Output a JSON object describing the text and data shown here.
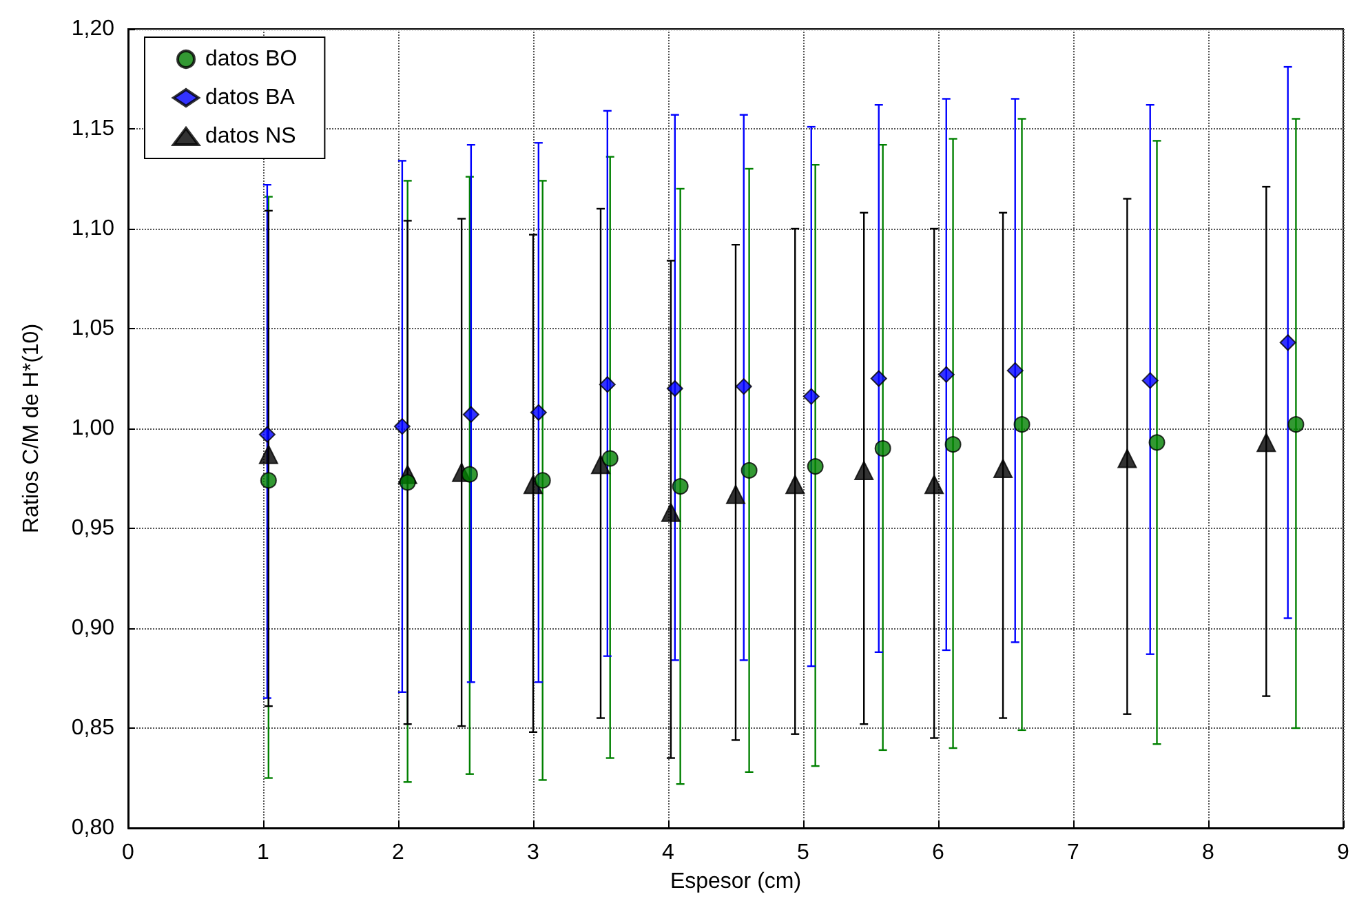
{
  "chart_data": {
    "type": "scatter",
    "xlabel": "Espesor (cm)",
    "ylabel": "Ratios C/M de H*(10)",
    "xlim": [
      0,
      9
    ],
    "xticks": [
      0,
      1,
      2,
      3,
      4,
      5,
      6,
      7,
      8,
      9
    ],
    "ylim": [
      0.8,
      1.2
    ],
    "yticks": [
      {
        "value": 0.8,
        "label": "0,80"
      },
      {
        "value": 0.85,
        "label": "0,85"
      },
      {
        "value": 0.9,
        "label": "0,90"
      },
      {
        "value": 0.95,
        "label": "0,95"
      },
      {
        "value": 1.0,
        "label": "1,00"
      },
      {
        "value": 1.05,
        "label": "1,05"
      },
      {
        "value": 1.1,
        "label": "1,10"
      },
      {
        "value": 1.15,
        "label": "1,15"
      },
      {
        "value": 1.2,
        "label": "1,20"
      }
    ],
    "grid": true,
    "legend": "top left",
    "series": [
      {
        "name": "datos BO",
        "color": "#008000",
        "marker": "circle",
        "x": [
          1.04,
          2.07,
          2.53,
          3.07,
          3.57,
          4.09,
          4.6,
          5.09,
          5.59,
          6.11,
          6.62,
          7.62,
          8.65
        ],
        "values": [
          0.974,
          0.973,
          0.977,
          0.974,
          0.985,
          0.971,
          0.979,
          0.981,
          0.99,
          0.992,
          1.002,
          0.993,
          1.002
        ],
        "errors": [
          [
            0.825,
            1.116
          ],
          [
            0.823,
            1.124
          ],
          [
            0.827,
            1.126
          ],
          [
            0.824,
            1.124
          ],
          [
            0.835,
            1.136
          ],
          [
            0.822,
            1.12
          ],
          [
            0.828,
            1.13
          ],
          [
            0.831,
            1.132
          ],
          [
            0.839,
            1.142
          ],
          [
            0.84,
            1.145
          ],
          [
            0.849,
            1.155
          ],
          [
            0.842,
            1.144
          ],
          [
            0.85,
            1.155
          ]
        ]
      },
      {
        "name": "datos BA",
        "color": "#0000ff",
        "marker": "diamond",
        "x": [
          1.03,
          2.03,
          2.54,
          3.04,
          3.55,
          4.05,
          4.56,
          5.06,
          5.56,
          6.06,
          6.57,
          7.57,
          8.59
        ],
        "values": [
          0.997,
          1.001,
          1.007,
          1.008,
          1.022,
          1.02,
          1.021,
          1.016,
          1.025,
          1.027,
          1.029,
          1.024,
          1.043
        ],
        "errors": [
          [
            0.865,
            1.122
          ],
          [
            0.868,
            1.134
          ],
          [
            0.873,
            1.142
          ],
          [
            0.873,
            1.143
          ],
          [
            0.886,
            1.159
          ],
          [
            0.884,
            1.157
          ],
          [
            0.884,
            1.157
          ],
          [
            0.881,
            1.151
          ],
          [
            0.888,
            1.162
          ],
          [
            0.889,
            1.165
          ],
          [
            0.893,
            1.165
          ],
          [
            0.887,
            1.162
          ],
          [
            0.905,
            1.181
          ]
        ]
      },
      {
        "name": "datos NS",
        "color": "#000000",
        "marker": "triangle",
        "x": [
          1.04,
          2.07,
          2.47,
          3.0,
          3.5,
          4.02,
          4.5,
          4.94,
          5.45,
          5.97,
          6.48,
          7.4,
          8.43
        ],
        "values": [
          0.987,
          0.977,
          0.978,
          0.972,
          0.982,
          0.958,
          0.967,
          0.972,
          0.979,
          0.972,
          0.98,
          0.985,
          0.993
        ],
        "errors": [
          [
            0.861,
            1.109
          ],
          [
            0.852,
            1.104
          ],
          [
            0.851,
            1.105
          ],
          [
            0.848,
            1.097
          ],
          [
            0.855,
            1.11
          ],
          [
            0.835,
            1.084
          ],
          [
            0.844,
            1.092
          ],
          [
            0.847,
            1.1
          ],
          [
            0.852,
            1.108
          ],
          [
            0.845,
            1.1
          ],
          [
            0.855,
            1.108
          ],
          [
            0.857,
            1.115
          ],
          [
            0.866,
            1.121
          ]
        ]
      }
    ]
  }
}
